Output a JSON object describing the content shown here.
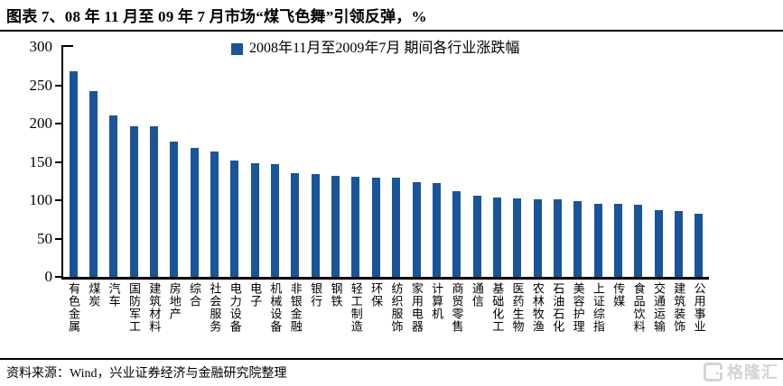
{
  "title": "图表 7、08 年 11 月至 09 年 7 月市场“煤飞色舞”引领反弹，%",
  "chart_data": {
    "type": "bar",
    "title": "图表 7、08 年 11 月至 09 年 7 月市场“煤飞色舞”引领反弹，%",
    "legend_label": "2008年11月至2009年7月 期间各行业涨跌幅",
    "legend_position": "top",
    "grid": false,
    "bar_color": "#1A5499",
    "xlabel": "",
    "ylabel": "",
    "ylim": [
      0,
      300
    ],
    "yticks": [
      0,
      50,
      100,
      150,
      200,
      250,
      300
    ],
    "categories": [
      "有色金属",
      "煤炭",
      "汽车",
      "国防军工",
      "建筑材料",
      "房地产",
      "综合",
      "社会服务",
      "电力设备",
      "电子",
      "机械设备",
      "非银金融",
      "银行",
      "钢铁",
      "轻工制造",
      "环保",
      "纺织服饰",
      "家用电器",
      "计算机",
      "商贸零售",
      "通信",
      "基础化工",
      "医药生物",
      "农林牧渔",
      "石油石化",
      "美容护理",
      "上证综指",
      "传媒",
      "食品饮料",
      "交通运输",
      "建筑装饰",
      "公用事业"
    ],
    "values": [
      268,
      242,
      211,
      197,
      196,
      177,
      168,
      164,
      152,
      148,
      147,
      135,
      134,
      132,
      131,
      130,
      129,
      124,
      123,
      112,
      106,
      104,
      102,
      101,
      101,
      99,
      95,
      95,
      94,
      87,
      86,
      83
    ]
  },
  "footer": {
    "source": "资料来源：Wind，兴业证券经济与金融研究院整理"
  },
  "watermark": {
    "text": "格隆汇"
  }
}
